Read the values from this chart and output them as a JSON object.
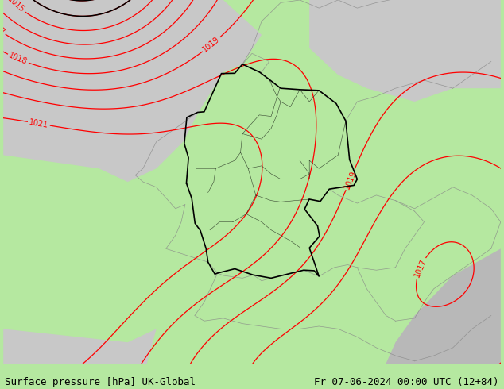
{
  "title_left": "Surface pressure [hPa] UK-Global",
  "title_right": "Fr 07-06-2024 00:00 UTC (12+84)",
  "bg_green": "#b5e8a0",
  "bg_gray_light": "#c8c8c8",
  "bg_gray_medium": "#b8b8b8",
  "bg_white": "#ffffff",
  "isobar_red": "#ff0000",
  "isobar_black": "#000000",
  "isobar_blue": "#4444ff",
  "border_black": "#000000",
  "border_gray": "#888888",
  "label_fontsize": 7.0,
  "title_fontsize": 9.0,
  "figsize": [
    6.34,
    4.9
  ],
  "dpi": 100,
  "lon_min": -3.5,
  "lon_max": 22.5,
  "lat_min": 44.2,
  "lat_max": 57.8,
  "pressure_low_lon": 0.5,
  "pressure_low_lat": 60.0,
  "pressure_low_val": -9.0,
  "pressure_high_lon": -2.0,
  "pressure_high_lat": 49.5,
  "pressure_high_val": 3.5,
  "pressure_base": 1019.5
}
